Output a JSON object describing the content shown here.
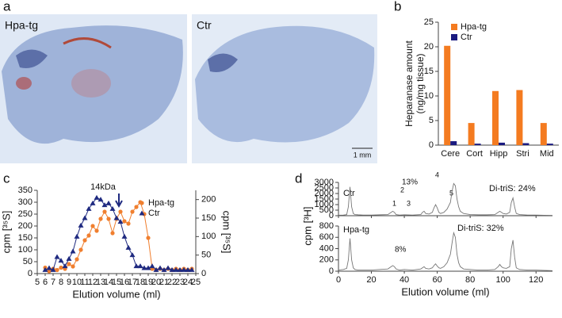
{
  "panel_labels": [
    "a",
    "b",
    "c",
    "d"
  ],
  "images": [
    {
      "label": "Hpa-tg"
    },
    {
      "label": "Ctr",
      "scale_bar": "1 mm"
    }
  ],
  "chart_data": [
    {
      "type": "bar",
      "ylabel": [
        "Heparanase amount",
        "(ng/mg tissue)"
      ],
      "categories": [
        "Cere",
        "Cort",
        "Hipp",
        "Stri",
        "Mid"
      ],
      "series": [
        {
          "name": "Hpa-tg",
          "color": "#f47b20",
          "values": [
            20.2,
            4.5,
            11,
            11.2,
            4.5
          ]
        },
        {
          "name": "Ctr",
          "color": "#1a1a80",
          "values": [
            0.8,
            0.3,
            0.5,
            0.4,
            0.3
          ]
        }
      ],
      "ylim": [
        0,
        25
      ],
      "yticks": [
        0,
        5,
        10,
        15,
        20,
        25
      ],
      "legend": "top-left"
    },
    {
      "type": "line",
      "xlabel": "Elution volume (ml)",
      "ylabel": "cpm [³⁵S]",
      "y2label": "cpm [³⁵S]",
      "annotations": [
        "14kDa"
      ],
      "x": [
        6,
        6.5,
        7,
        7.5,
        8,
        8.5,
        9,
        9.5,
        10,
        10.5,
        11,
        11.5,
        12,
        12.5,
        13,
        13.5,
        14,
        14.5,
        15,
        15.5,
        16,
        16.5,
        17,
        17.5,
        18,
        18.5,
        19,
        19.5,
        20,
        20.5,
        21,
        21.5,
        22,
        22.5,
        23,
        23.5,
        24,
        24.5
      ],
      "series": [
        {
          "name": "Hpa-tg",
          "color": "#f07f2f",
          "marker": "circle",
          "values": [
            25,
            10,
            20,
            15,
            25,
            20,
            40,
            30,
            60,
            100,
            140,
            160,
            200,
            180,
            230,
            260,
            230,
            170,
            230,
            260,
            220,
            210,
            260,
            280,
            300,
            250,
            150,
            20,
            15,
            20,
            15,
            20,
            15,
            20,
            15,
            20,
            15,
            20
          ]
        },
        {
          "name": "Ctr",
          "color": "#1f2a80",
          "marker": "triangle",
          "axis": "y2",
          "values": [
            10,
            15,
            10,
            45,
            35,
            20,
            40,
            60,
            100,
            130,
            150,
            175,
            190,
            205,
            200,
            185,
            190,
            175,
            150,
            140,
            100,
            70,
            50,
            20,
            20,
            15,
            15,
            20,
            10,
            15,
            10,
            15,
            10,
            10,
            10,
            10,
            10,
            10
          ]
        }
      ],
      "xlim": [
        5,
        25
      ],
      "xticks": [
        5,
        6,
        7,
        8,
        9,
        10,
        11,
        12,
        13,
        14,
        15,
        16,
        17,
        18,
        19,
        20,
        21,
        22,
        23,
        24,
        25
      ],
      "ylim": [
        0,
        350
      ],
      "yticks": [
        0,
        50,
        100,
        150,
        200,
        250,
        300,
        350
      ],
      "y2lim": [
        0,
        225
      ],
      "y2ticks": [
        0,
        50,
        100,
        150,
        200
      ],
      "legend": "top-right"
    },
    {
      "type": "line",
      "annotations": [
        "Ctr",
        "Di-triS: 24%",
        "13%",
        "1",
        "2",
        "3",
        "4",
        "5"
      ],
      "x": [
        0,
        3,
        5,
        6,
        7,
        8,
        9,
        10,
        12,
        15,
        20,
        25,
        30,
        32,
        33,
        34,
        35,
        37,
        40,
        45,
        50,
        51,
        52,
        53,
        55,
        57,
        58,
        59,
        60,
        61,
        62,
        64,
        66,
        68,
        69,
        70,
        71,
        72,
        73,
        74,
        76,
        80,
        85,
        90,
        95,
        97,
        98,
        99,
        100,
        102,
        104,
        105,
        106,
        107,
        108,
        110,
        115,
        120,
        125,
        130
      ],
      "values": [
        50,
        60,
        100,
        800,
        2600,
        800,
        200,
        100,
        80,
        60,
        60,
        80,
        100,
        300,
        400,
        300,
        100,
        60,
        80,
        60,
        100,
        300,
        400,
        200,
        150,
        300,
        700,
        1000,
        700,
        300,
        200,
        300,
        600,
        1200,
        2200,
        2900,
        2700,
        1500,
        800,
        400,
        200,
        100,
        80,
        80,
        100,
        300,
        400,
        300,
        200,
        150,
        300,
        1200,
        1600,
        800,
        200,
        100,
        60,
        60,
        40,
        30
      ],
      "color": "#777777",
      "xlim": [
        0,
        130
      ],
      "xticks": [
        0,
        20,
        40,
        60,
        80,
        100,
        120
      ],
      "ylim": [
        0,
        3000
      ],
      "yticks": [
        0,
        500,
        1000,
        1500,
        2000,
        2500,
        3000
      ]
    },
    {
      "type": "line",
      "annotations": [
        "Hpa-tg",
        "Di-triS: 32%",
        "8%"
      ],
      "xlabel": "Elution volume (ml)",
      "ylabel": "cpm [³H]",
      "x": [
        0,
        3,
        5,
        6,
        7,
        8,
        9,
        10,
        12,
        15,
        20,
        25,
        30,
        32,
        33,
        34,
        35,
        37,
        40,
        45,
        50,
        51,
        52,
        53,
        55,
        57,
        58,
        59,
        60,
        61,
        62,
        64,
        66,
        68,
        69,
        70,
        71,
        72,
        73,
        74,
        76,
        80,
        85,
        90,
        95,
        97,
        98,
        99,
        100,
        102,
        104,
        105,
        106,
        107,
        108,
        110,
        115,
        120,
        125,
        130
      ],
      "values": [
        20,
        30,
        50,
        200,
        580,
        200,
        60,
        30,
        20,
        20,
        20,
        30,
        40,
        80,
        100,
        80,
        40,
        20,
        30,
        20,
        40,
        60,
        80,
        50,
        40,
        60,
        100,
        130,
        90,
        60,
        50,
        80,
        150,
        300,
        500,
        680,
        600,
        300,
        150,
        80,
        40,
        30,
        20,
        20,
        30,
        80,
        120,
        80,
        60,
        50,
        80,
        400,
        550,
        250,
        60,
        30,
        20,
        20,
        15,
        10
      ],
      "color": "#777777",
      "xlim": [
        0,
        130
      ],
      "xticks": [
        0,
        20,
        40,
        60,
        80,
        100,
        120
      ],
      "ylim": [
        0,
        800
      ],
      "yticks": [
        0,
        200,
        400,
        600,
        800
      ]
    }
  ]
}
